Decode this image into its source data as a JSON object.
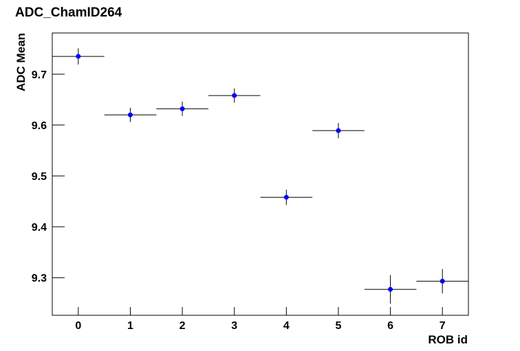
{
  "chart_data": {
    "type": "scatter",
    "title": "ADC_ChamID264",
    "x_label": "ROB id",
    "y_label": "ADC Mean",
    "x": [
      0,
      1,
      2,
      3,
      4,
      5,
      6,
      7
    ],
    "xerr": [
      0.5,
      0.5,
      0.5,
      0.5,
      0.5,
      0.5,
      0.5,
      0.5
    ],
    "values": [
      9.735,
      9.62,
      9.632,
      9.658,
      9.458,
      9.589,
      9.277,
      9.293
    ],
    "yerr": [
      0.016,
      0.014,
      0.014,
      0.014,
      0.015,
      0.015,
      0.028,
      0.024
    ],
    "color": "#0000ff",
    "xlim": [
      -0.5,
      7.5
    ],
    "xticks": [
      0,
      1,
      2,
      3,
      4,
      5,
      6,
      7
    ],
    "ylim": [
      9.226,
      9.781
    ],
    "yticks": [
      9.3,
      9.4,
      9.5,
      9.6,
      9.7
    ]
  }
}
